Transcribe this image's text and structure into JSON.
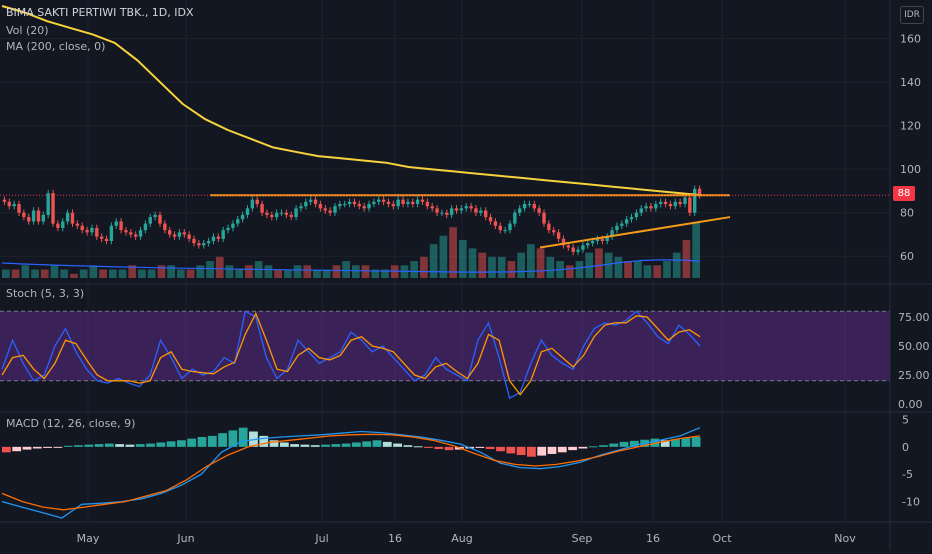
{
  "legend": {
    "symbol": "BIMA SAKTI PERTIWI TBK., 1D, IDX",
    "vol": "Vol (20)",
    "ma": "MA (200, close, 0)",
    "stoch": "Stoch (5, 3, 3)",
    "macd": "MACD (12, 26, close, 9)"
  },
  "currency": "IDR",
  "last_price_label": "88",
  "colors": {
    "up": "#26a69a",
    "down": "#ef5350",
    "ma": "#f7d33b",
    "trend": "#f59b1b",
    "stoch_k": "#2962ff",
    "stoch_d": "#ff9800",
    "stoch_band": "#5b2c86",
    "macd": "#2196f3",
    "signal": "#ff6d00",
    "last_price": "#f23645"
  },
  "chart_data": [
    {
      "type": "candlestick",
      "title": "BIMA SAKTI PERTIWI TBK., 1D, IDX",
      "x_ticks": [
        "May",
        "Jun",
        "Jul",
        "16",
        "Aug",
        "Sep",
        "16",
        "Oct",
        "Nov"
      ],
      "y_ticks": [
        60,
        80,
        100,
        120,
        140,
        160
      ],
      "ylim": [
        50,
        175
      ],
      "last_price": 88,
      "resistance_line": 88,
      "ohlc_close_path": [
        85,
        83,
        84,
        80,
        78,
        76,
        81,
        76,
        79,
        89,
        75,
        73,
        76,
        80,
        75,
        74,
        72,
        71,
        73,
        69,
        68,
        67,
        74,
        76,
        72,
        71,
        70,
        69,
        72,
        75,
        78,
        79,
        75,
        72,
        70,
        69,
        71,
        70,
        68,
        66,
        65,
        66,
        67,
        69,
        68,
        72,
        73,
        75,
        77,
        79,
        82,
        86,
        84,
        80,
        79,
        78,
        80,
        80,
        79,
        78,
        82,
        83,
        85,
        86,
        84,
        82,
        81,
        80,
        83,
        84,
        84,
        85,
        84,
        83,
        82,
        84,
        85,
        86,
        85,
        84,
        83,
        86,
        84,
        85,
        84,
        86,
        85,
        83,
        82,
        80,
        80,
        79,
        82,
        81,
        82,
        83,
        82,
        80,
        81,
        78,
        76,
        74,
        72,
        72,
        75,
        80,
        82,
        84,
        84,
        82,
        80,
        75,
        72,
        71,
        68,
        65,
        64,
        62,
        63,
        65,
        66,
        67,
        68,
        67,
        69,
        72,
        74,
        75,
        77,
        78,
        80,
        82,
        83,
        82,
        84,
        85,
        84,
        83,
        85,
        84,
        87,
        80,
        91,
        88
      ],
      "series": [
        {
          "name": "MA (200, close, 0)",
          "values": [
            175,
            172,
            168,
            165,
            162,
            158,
            150,
            140,
            130,
            123,
            118,
            114,
            110,
            108,
            106,
            105,
            104,
            103,
            101,
            100,
            99,
            98,
            97,
            96,
            95,
            94,
            93,
            92,
            91,
            90,
            89,
            88
          ]
        }
      ],
      "trend_line": {
        "from": 64,
        "to": 78
      },
      "volume": [
        2,
        2,
        3,
        2,
        2,
        3,
        2,
        1,
        2,
        3,
        2,
        2,
        2,
        3,
        2,
        2,
        3,
        3,
        2,
        2,
        3,
        4,
        5,
        3,
        2,
        3,
        4,
        3,
        2,
        2,
        3,
        3,
        2,
        2,
        3,
        4,
        3,
        3,
        2,
        2,
        3,
        3,
        4,
        5,
        8,
        10,
        12,
        9,
        7,
        6,
        5,
        5,
        4,
        6,
        8,
        7,
        5,
        4,
        3,
        4,
        6,
        7,
        6,
        5,
        4,
        4,
        3,
        3,
        4,
        6,
        9,
        13
      ],
      "volume_ma_level": 4
    },
    {
      "type": "line",
      "title": "Stoch (5, 3, 3)",
      "y_ticks": [
        "75.00",
        "50.00",
        "25.00",
        "0.00"
      ],
      "ylim": [
        0,
        100
      ],
      "band": [
        20,
        80
      ],
      "series": [
        {
          "name": "%K",
          "values": [
            30,
            55,
            35,
            20,
            25,
            50,
            65,
            45,
            30,
            20,
            18,
            22,
            18,
            15,
            25,
            55,
            40,
            22,
            30,
            25,
            28,
            40,
            35,
            80,
            75,
            40,
            22,
            30,
            55,
            45,
            35,
            40,
            45,
            62,
            55,
            45,
            50,
            40,
            30,
            20,
            25,
            40,
            30,
            25,
            20,
            55,
            70,
            40,
            5,
            10,
            35,
            55,
            42,
            35,
            30,
            50,
            65,
            70,
            68,
            72,
            80,
            70,
            58,
            52,
            68,
            60,
            50
          ]
        },
        {
          "name": "%D",
          "values": [
            25,
            40,
            42,
            30,
            22,
            35,
            55,
            52,
            38,
            25,
            20,
            20,
            20,
            18,
            20,
            40,
            45,
            30,
            28,
            27,
            26,
            32,
            36,
            60,
            78,
            55,
            30,
            28,
            42,
            48,
            40,
            38,
            42,
            55,
            58,
            50,
            48,
            45,
            35,
            25,
            22,
            32,
            35,
            28,
            22,
            35,
            60,
            55,
            20,
            8,
            20,
            45,
            48,
            40,
            32,
            42,
            58,
            68,
            70,
            70,
            76,
            75,
            65,
            55,
            62,
            64,
            58
          ]
        }
      ]
    },
    {
      "type": "bar",
      "title": "MACD (12, 26, close, 9)",
      "y_ticks": [
        "5",
        "0",
        "-5",
        "-10"
      ],
      "ylim": [
        -13,
        6
      ],
      "histogram": [
        -1,
        -0.8,
        -0.5,
        -0.3,
        -0.2,
        -0.1,
        0.2,
        0.3,
        0.4,
        0.5,
        0.6,
        0.5,
        0.4,
        0.5,
        0.6,
        0.8,
        1,
        1.2,
        1.5,
        1.8,
        2,
        2.5,
        3,
        3.5,
        2.8,
        2,
        1.2,
        0.8,
        0.5,
        0.4,
        0.3,
        0.4,
        0.5,
        0.6,
        0.8,
        1,
        1.2,
        0.9,
        0.6,
        0.3,
        0.1,
        -0.2,
        -0.4,
        -0.6,
        -0.5,
        -0.3,
        -0.2,
        -0.4,
        -0.8,
        -1.2,
        -1.5,
        -1.8,
        -1.6,
        -1.3,
        -1,
        -0.6,
        -0.3,
        0.1,
        0.3,
        0.6,
        0.9,
        1.1,
        1.3,
        1.5,
        1.2,
        1.4,
        1.6,
        1.8
      ],
      "series": [
        {
          "name": "MACD",
          "values": [
            -10,
            -11,
            -12,
            -13,
            -10.5,
            -10.3,
            -10,
            -9.5,
            -8.5,
            -7,
            -5,
            -1,
            1,
            1.5,
            1.8,
            2,
            2.2,
            2.5,
            2.8,
            2.6,
            2.2,
            1.8,
            1.2,
            0.5,
            -1,
            -3,
            -3.8,
            -4,
            -3.6,
            -2.8,
            -1.5,
            -0.5,
            0.5,
            1.2,
            2,
            3.5
          ]
        },
        {
          "name": "Signal",
          "values": [
            -8.5,
            -10,
            -11,
            -11.5,
            -11,
            -10.5,
            -10,
            -9,
            -8,
            -6,
            -3.5,
            -1.5,
            0,
            0.8,
            1.2,
            1.6,
            2,
            2.2,
            2.3,
            2.2,
            1.8,
            1.2,
            0.2,
            -1.2,
            -2.5,
            -3.2,
            -3.5,
            -3.2,
            -2.6,
            -1.8,
            -0.8,
            0,
            0.8,
            1.5,
            2
          ]
        }
      ]
    }
  ]
}
